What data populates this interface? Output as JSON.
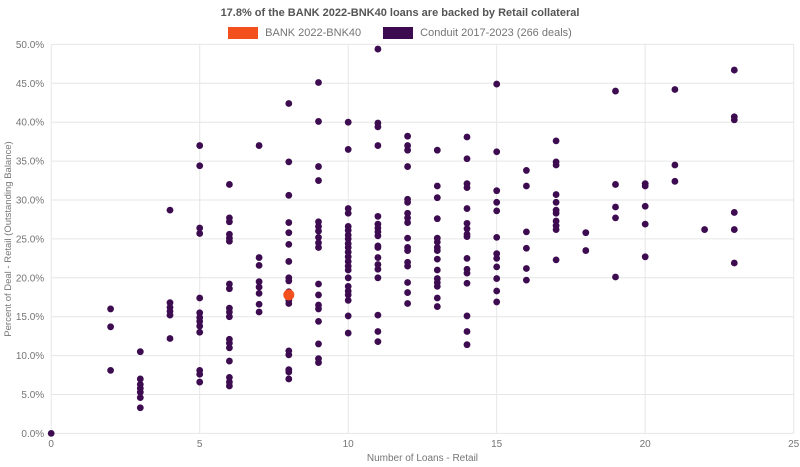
{
  "chart_data": {
    "type": "scatter",
    "title": "17.8% of the BANK 2022-BNK40 loans are backed by Retail collateral",
    "xlabel": "Number of Loans - Retail",
    "ylabel": "Percent of Deal - Retail (Outstanding Balance)",
    "xlim": [
      0,
      25
    ],
    "ylim": [
      0,
      50
    ],
    "grid": true,
    "legend_position": "top-center",
    "colors": {
      "background": "#ffffff",
      "grid": "#e6e6e6",
      "tick_text": "#757575",
      "title_text": "#555555",
      "bank_accent": "#f4501e",
      "conduit_accent": "#3d0c50"
    },
    "x_ticks": [
      {
        "v": 0,
        "label": "0"
      },
      {
        "v": 5,
        "label": "5"
      },
      {
        "v": 10,
        "label": "10"
      },
      {
        "v": 15,
        "label": "15"
      },
      {
        "v": 20,
        "label": "20"
      },
      {
        "v": 25,
        "label": "25"
      }
    ],
    "y_ticks": [
      {
        "v": 0,
        "label": "0.0%"
      },
      {
        "v": 5,
        "label": "5.0%"
      },
      {
        "v": 10,
        "label": "10.0%"
      },
      {
        "v": 15,
        "label": "15.0%"
      },
      {
        "v": 20,
        "label": "20.0%"
      },
      {
        "v": 25,
        "label": "25.0%"
      },
      {
        "v": 30,
        "label": "30.0%"
      },
      {
        "v": 35,
        "label": "35.0%"
      },
      {
        "v": 40,
        "label": "40.0%"
      },
      {
        "v": 45,
        "label": "45.0%"
      },
      {
        "v": 50,
        "label": "50.0%"
      }
    ],
    "series": [
      {
        "name": "Conduit 2017-2023 (266 deals)",
        "color": "#3d0c50",
        "marker_radius": 3.4,
        "points": [
          [
            0,
            0.0
          ],
          [
            2,
            16.0
          ],
          [
            2,
            13.7
          ],
          [
            2,
            8.1
          ],
          [
            3,
            10.5
          ],
          [
            3,
            7.0
          ],
          [
            3,
            6.3
          ],
          [
            3,
            5.8
          ],
          [
            3,
            5.3
          ],
          [
            3,
            4.6
          ],
          [
            3,
            3.3
          ],
          [
            4,
            28.7
          ],
          [
            4,
            16.8
          ],
          [
            4,
            16.2
          ],
          [
            4,
            15.7
          ],
          [
            4,
            15.2
          ],
          [
            4,
            12.2
          ],
          [
            5,
            37.0
          ],
          [
            5,
            34.4
          ],
          [
            5,
            26.4
          ],
          [
            5,
            25.7
          ],
          [
            5,
            17.4
          ],
          [
            5,
            15.5
          ],
          [
            5,
            14.9
          ],
          [
            5,
            14.4
          ],
          [
            5,
            13.8
          ],
          [
            5,
            13.0
          ],
          [
            5,
            8.1
          ],
          [
            5,
            7.6
          ],
          [
            5,
            6.6
          ],
          [
            6,
            32.0
          ],
          [
            6,
            27.7
          ],
          [
            6,
            27.2
          ],
          [
            6,
            25.6
          ],
          [
            6,
            25.1
          ],
          [
            6,
            24.7
          ],
          [
            6,
            19.2
          ],
          [
            6,
            18.6
          ],
          [
            6,
            16.1
          ],
          [
            6,
            15.6
          ],
          [
            6,
            15.0
          ],
          [
            6,
            12.1
          ],
          [
            6,
            11.6
          ],
          [
            6,
            11.0
          ],
          [
            6,
            9.3
          ],
          [
            6,
            7.2
          ],
          [
            6,
            6.6
          ],
          [
            6,
            6.1
          ],
          [
            7,
            37.0
          ],
          [
            7,
            22.6
          ],
          [
            7,
            21.6
          ],
          [
            7,
            19.5
          ],
          [
            7,
            18.8
          ],
          [
            7,
            18.0
          ],
          [
            7,
            16.6
          ],
          [
            7,
            15.6
          ],
          [
            8,
            42.4
          ],
          [
            8,
            34.9
          ],
          [
            8,
            30.6
          ],
          [
            8,
            27.1
          ],
          [
            8,
            25.8
          ],
          [
            8,
            24.3
          ],
          [
            8,
            22.1
          ],
          [
            8,
            20.0
          ],
          [
            8,
            19.6
          ],
          [
            8,
            18.2
          ],
          [
            8,
            17.1
          ],
          [
            8,
            16.7
          ],
          [
            8,
            10.6
          ],
          [
            8,
            10.1
          ],
          [
            8,
            8.2
          ],
          [
            8,
            7.9
          ],
          [
            8,
            7.0
          ],
          [
            9,
            45.1
          ],
          [
            9,
            40.1
          ],
          [
            9,
            34.3
          ],
          [
            9,
            32.5
          ],
          [
            9,
            27.2
          ],
          [
            9,
            26.6
          ],
          [
            9,
            26.0
          ],
          [
            9,
            25.2
          ],
          [
            9,
            24.5
          ],
          [
            9,
            23.9
          ],
          [
            9,
            19.2
          ],
          [
            9,
            17.8
          ],
          [
            9,
            16.5
          ],
          [
            9,
            16.0
          ],
          [
            9,
            14.4
          ],
          [
            9,
            11.5
          ],
          [
            9,
            9.6
          ],
          [
            9,
            9.1
          ],
          [
            10,
            40.0
          ],
          [
            10,
            36.5
          ],
          [
            10,
            28.9
          ],
          [
            10,
            28.3
          ],
          [
            10,
            26.6
          ],
          [
            10,
            26.1
          ],
          [
            10,
            25.5
          ],
          [
            10,
            25.0
          ],
          [
            10,
            24.4
          ],
          [
            10,
            23.9
          ],
          [
            10,
            23.3
          ],
          [
            10,
            22.7
          ],
          [
            10,
            22.1
          ],
          [
            10,
            21.5
          ],
          [
            10,
            21.0
          ],
          [
            10,
            20.0
          ],
          [
            10,
            18.9
          ],
          [
            10,
            18.3
          ],
          [
            10,
            17.8
          ],
          [
            10,
            17.1
          ],
          [
            10,
            15.1
          ],
          [
            10,
            12.9
          ],
          [
            11,
            49.4
          ],
          [
            11,
            39.9
          ],
          [
            11,
            39.4
          ],
          [
            11,
            37.0
          ],
          [
            11,
            27.9
          ],
          [
            11,
            26.9
          ],
          [
            11,
            26.4
          ],
          [
            11,
            25.9
          ],
          [
            11,
            25.4
          ],
          [
            11,
            24.1
          ],
          [
            11,
            23.9
          ],
          [
            11,
            22.6
          ],
          [
            11,
            21.7
          ],
          [
            11,
            21.1
          ],
          [
            11,
            20.0
          ],
          [
            11,
            15.2
          ],
          [
            11,
            13.1
          ],
          [
            11,
            11.8
          ],
          [
            12,
            38.2
          ],
          [
            12,
            37.0
          ],
          [
            12,
            36.4
          ],
          [
            12,
            34.3
          ],
          [
            12,
            30.1
          ],
          [
            12,
            29.7
          ],
          [
            12,
            28.3
          ],
          [
            12,
            27.7
          ],
          [
            12,
            27.1
          ],
          [
            12,
            25.1
          ],
          [
            12,
            23.9
          ],
          [
            12,
            23.5
          ],
          [
            12,
            22.0
          ],
          [
            12,
            21.5
          ],
          [
            12,
            19.4
          ],
          [
            12,
            18.1
          ],
          [
            12,
            16.7
          ],
          [
            13,
            36.4
          ],
          [
            13,
            31.8
          ],
          [
            13,
            30.3
          ],
          [
            13,
            27.6
          ],
          [
            13,
            25.1
          ],
          [
            13,
            24.6
          ],
          [
            13,
            23.9
          ],
          [
            13,
            23.5
          ],
          [
            13,
            22.4
          ],
          [
            13,
            21.0
          ],
          [
            13,
            19.9
          ],
          [
            13,
            19.4
          ],
          [
            13,
            18.9
          ],
          [
            13,
            17.4
          ],
          [
            13,
            16.3
          ],
          [
            14,
            38.1
          ],
          [
            14,
            35.3
          ],
          [
            14,
            32.1
          ],
          [
            14,
            31.6
          ],
          [
            14,
            28.9
          ],
          [
            14,
            27.0
          ],
          [
            14,
            26.3
          ],
          [
            14,
            25.6
          ],
          [
            14,
            25.3
          ],
          [
            14,
            22.5
          ],
          [
            14,
            21.1
          ],
          [
            14,
            20.6
          ],
          [
            14,
            19.3
          ],
          [
            14,
            15.1
          ],
          [
            14,
            13.1
          ],
          [
            14,
            11.4
          ],
          [
            15,
            44.9
          ],
          [
            15,
            36.2
          ],
          [
            15,
            31.2
          ],
          [
            15,
            29.7
          ],
          [
            15,
            28.6
          ],
          [
            15,
            25.2
          ],
          [
            15,
            23.1
          ],
          [
            15,
            22.5
          ],
          [
            15,
            21.4
          ],
          [
            15,
            19.9
          ],
          [
            15,
            18.3
          ],
          [
            15,
            16.9
          ],
          [
            16,
            33.8
          ],
          [
            16,
            31.8
          ],
          [
            16,
            25.9
          ],
          [
            16,
            23.8
          ],
          [
            16,
            21.2
          ],
          [
            16,
            19.7
          ],
          [
            17,
            37.6
          ],
          [
            17,
            34.9
          ],
          [
            17,
            34.5
          ],
          [
            17,
            30.7
          ],
          [
            17,
            29.7
          ],
          [
            17,
            28.7
          ],
          [
            17,
            28.3
          ],
          [
            17,
            27.3
          ],
          [
            17,
            26.7
          ],
          [
            17,
            26.2
          ],
          [
            17,
            22.3
          ],
          [
            18,
            25.8
          ],
          [
            18,
            23.5
          ],
          [
            19,
            44.0
          ],
          [
            19,
            32.0
          ],
          [
            19,
            29.1
          ],
          [
            19,
            27.7
          ],
          [
            19,
            20.1
          ],
          [
            20,
            32.1
          ],
          [
            20,
            31.8
          ],
          [
            20,
            29.2
          ],
          [
            20,
            26.9
          ],
          [
            20,
            22.7
          ],
          [
            21,
            44.2
          ],
          [
            21,
            34.5
          ],
          [
            21,
            32.4
          ],
          [
            22,
            26.2
          ],
          [
            23,
            46.7
          ],
          [
            23,
            40.7
          ],
          [
            23,
            40.3
          ],
          [
            23,
            28.4
          ],
          [
            23,
            26.2
          ],
          [
            23,
            21.9
          ]
        ]
      },
      {
        "name": "BANK 2022-BNK40",
        "color": "#f4501e",
        "marker_radius": 5.5,
        "points": [
          [
            8,
            17.8
          ]
        ]
      }
    ]
  },
  "legend": {
    "bank_label": "BANK 2022-BNK40",
    "conduit_label": "Conduit 2017-2023 (266 deals)"
  }
}
